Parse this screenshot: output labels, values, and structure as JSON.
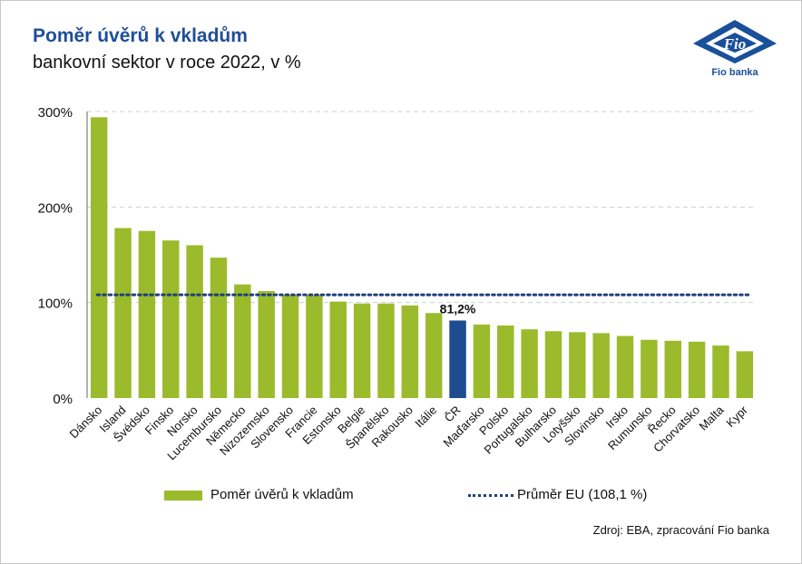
{
  "header": {
    "title": "Poměr úvěrů k vkladům",
    "subtitle": "bankovní sektor v roce 2022, v %"
  },
  "logo": {
    "icon": "fio-banka-logo-icon",
    "text": "Fio banka",
    "mark": "Fio",
    "color": "#1a4f99"
  },
  "legend": {
    "bar_label": "Poměr úvěrů k vkladům",
    "avg_label": "Průměr EU (108,1 %)"
  },
  "source": "Zdroj: EBA, zpracování Fio banka",
  "colors": {
    "bar": "#9bbb2c",
    "highlight": "#1f4b91",
    "average": "#1f3f7a",
    "grid": "#d0d0d0",
    "title": "#1f4e99"
  },
  "chart_data": {
    "type": "bar",
    "categories": [
      "Dánsko",
      "Island",
      "Švédsko",
      "Finsko",
      "Norsko",
      "Lucembursko",
      "Německo",
      "Nizozemsko",
      "Slovensko",
      "Francie",
      "Estonsko",
      "Belgie",
      "Španělsko",
      "Rakousko",
      "Itálie",
      "ČR",
      "Maďarsko",
      "Polsko",
      "Portugalsko",
      "Bulharsko",
      "Lotyšsko",
      "Slovinsko",
      "Irsko",
      "Rumunsko",
      "Řecko",
      "Chorvatsko",
      "Malta",
      "Kypr"
    ],
    "series": [
      {
        "name": "Poměr úvěrů k vkladům",
        "values": [
          294,
          178,
          175,
          165,
          160,
          147,
          119,
          112,
          108,
          108,
          101,
          99,
          99,
          97,
          89,
          81.2,
          77,
          76,
          72,
          70,
          69,
          68,
          65,
          61,
          60,
          59,
          55,
          49
        ]
      }
    ],
    "highlight": {
      "category": "ČR",
      "label": "81,2%"
    },
    "average_line": {
      "name": "Průměr EU (108,1 %)",
      "value": 108.1,
      "style": "dotted"
    },
    "ylim": [
      0,
      300
    ],
    "yticks": [
      0,
      100,
      200,
      300
    ],
    "ytick_labels": [
      "0%",
      "100%",
      "200%",
      "300%"
    ],
    "xlabel": "",
    "ylabel": "",
    "grid": true,
    "legend_position": "bottom"
  }
}
